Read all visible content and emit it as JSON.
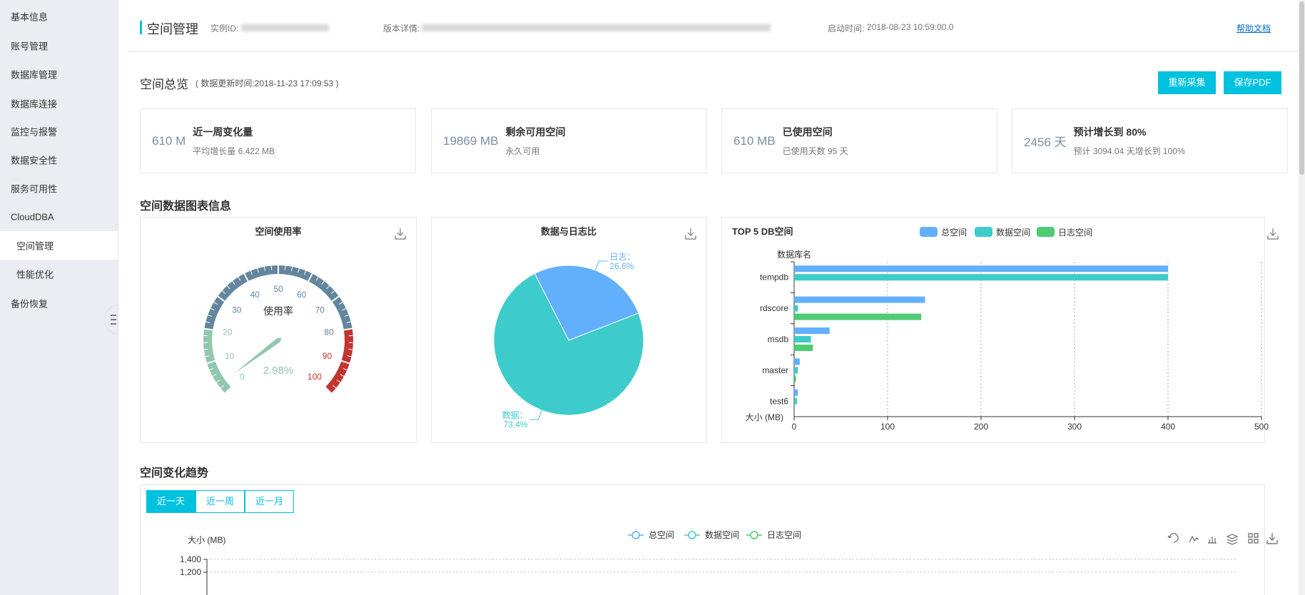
{
  "sidebar": {
    "items": [
      "基本信息",
      "账号管理",
      "数据库管理",
      "数据库连接",
      "监控与报警",
      "数据安全性",
      "服务可用性",
      "CloudDBA",
      "空间管理",
      "性能优化",
      "备份恢复"
    ]
  },
  "header": {
    "title": "空间管理",
    "instance_id_label": "实例ID:",
    "version_label": "版本详情:",
    "start_time_label": "启动时间:",
    "start_time": "2018-08-23 10:59:00.0",
    "help": "帮助文档"
  },
  "overview": {
    "title": "空间总览",
    "update_note": "( 数据更新时间:2018-11-23 17:09:53 )",
    "buttons": [
      "重新采集",
      "保存PDF"
    ],
    "cards": [
      {
        "value": "610 M",
        "title": "近一周变化量",
        "detail": "平均增长量 6.422 MB"
      },
      {
        "value": "19869 MB",
        "title": "剩余可用空间",
        "detail": "永久可用"
      },
      {
        "value": "610 MB",
        "title": "已使用空间",
        "detail": "已使用天数 95 天"
      },
      {
        "value": "2456 天",
        "title": "预计增长到 80%",
        "detail": "预计 3094.04 天增长到 100%"
      }
    ]
  },
  "charts_section": {
    "title": "空间数据图表信息"
  },
  "trend": {
    "title": "空间变化趋势",
    "tabs": [
      "近一天",
      "近一周",
      "近一月"
    ]
  },
  "chart_data": [
    {
      "type": "gauge",
      "title": "空间使用率",
      "label": "使用率",
      "value": 2.98,
      "value_label": "2.98%",
      "range": [
        0,
        100
      ],
      "ticks": [
        0,
        10,
        20,
        30,
        40,
        50,
        60,
        70,
        80,
        90,
        100
      ],
      "bands": [
        {
          "to": 20,
          "color": "#91c7ae"
        },
        {
          "to": 80,
          "color": "#63869e"
        },
        {
          "to": 100,
          "color": "#c23531"
        }
      ]
    },
    {
      "type": "pie",
      "title": "数据与日志比",
      "categories": [
        "日志：",
        "数据："
      ],
      "values": [
        26.6,
        73.4
      ],
      "value_labels": [
        "26.6%",
        "73.4%"
      ],
      "colors": [
        "#62b0fb",
        "#3ecbcb"
      ]
    },
    {
      "type": "bar",
      "orientation": "horizontal",
      "title": "TOP 5 DB空间",
      "y_label": "数据库名",
      "x_label": "大小 (MB)",
      "categories": [
        "tempdb",
        "rdscore",
        "msdb",
        "master",
        "test6"
      ],
      "series": [
        {
          "name": "总空间",
          "color": "#62b0fb",
          "values": [
            400,
            140,
            38,
            6,
            4
          ]
        },
        {
          "name": "数据空间",
          "color": "#3ecbcb",
          "values": [
            400,
            4,
            18,
            4,
            3
          ]
        },
        {
          "name": "日志空间",
          "color": "#4ecb73",
          "values": [
            0,
            136,
            20,
            2,
            0
          ]
        }
      ],
      "xlim": [
        0,
        500
      ],
      "xticks": [
        0,
        100,
        200,
        300,
        400,
        500
      ],
      "grid": true
    },
    {
      "type": "line",
      "y_label": "大小 (MB)",
      "series": [
        {
          "name": "总空间",
          "color": "#62b0fb"
        },
        {
          "name": "数据空间",
          "color": "#3ecbcb"
        },
        {
          "name": "日志空间",
          "color": "#4ecb73"
        }
      ],
      "ylim": [
        0,
        1400
      ],
      "yticks": [
        {
          "value": 1400,
          "label": "1,400"
        },
        {
          "value": 1200,
          "label": "1,200"
        }
      ],
      "grid": true
    }
  ]
}
